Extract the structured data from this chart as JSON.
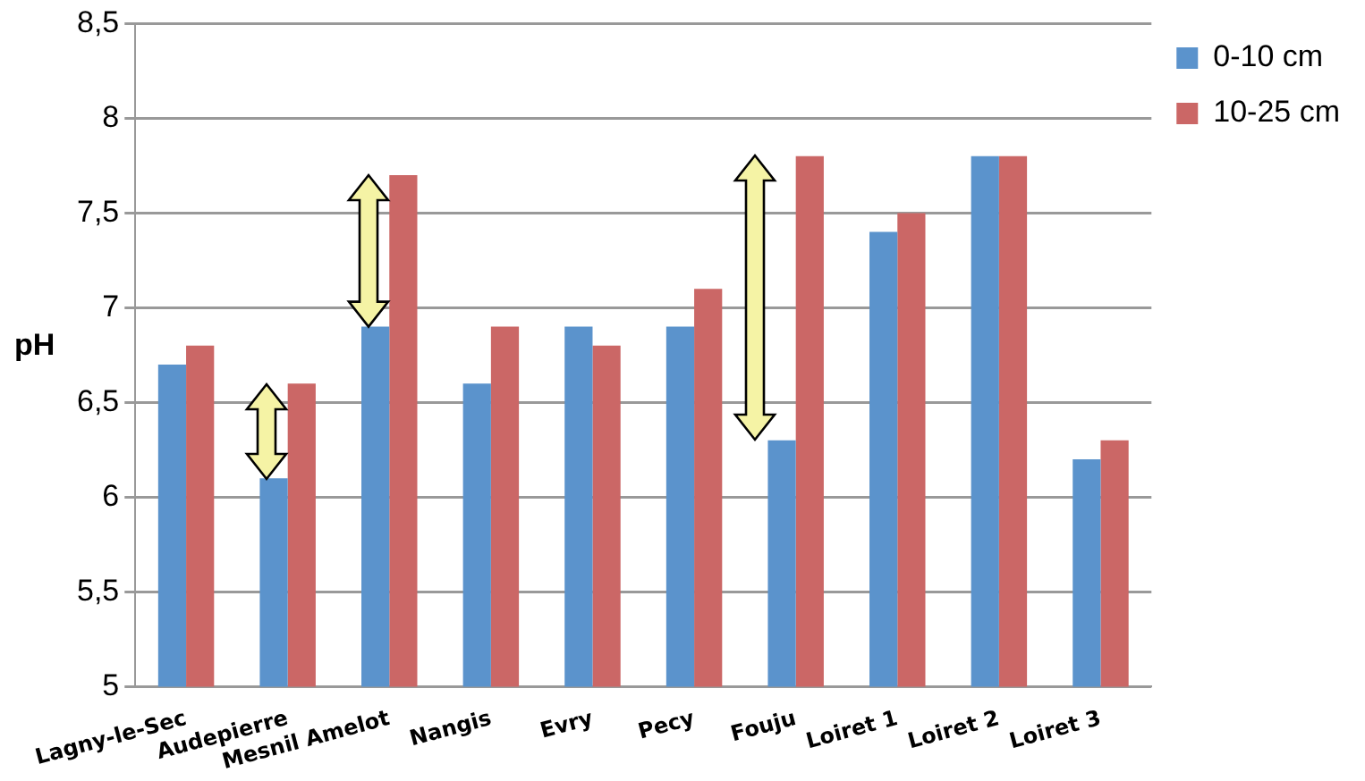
{
  "chart_data": {
    "type": "bar",
    "ylabel": "pH",
    "categories": [
      "Lagny-le-Sec",
      "Audepierre",
      "Mesnil Amelot",
      "Nangis",
      "Evry",
      "Pecy",
      "Fouju",
      "Loiret 1",
      "Loiret 2",
      "Loiret 3"
    ],
    "series": [
      {
        "name": "0-10 cm",
        "color": "#5b93cc",
        "values": [
          6.7,
          6.1,
          6.9,
          6.6,
          6.9,
          6.9,
          6.3,
          7.4,
          7.8,
          6.2
        ]
      },
      {
        "name": "10-25 cm",
        "color": "#cb6766",
        "values": [
          6.8,
          6.6,
          7.7,
          6.9,
          6.8,
          7.1,
          7.8,
          7.5,
          7.8,
          6.3
        ]
      }
    ],
    "ylim": [
      5,
      8.5
    ],
    "yticks": [
      5,
      {
        "value": 5.5,
        "label": "5,5"
      },
      6,
      {
        "value": 6.5,
        "label": "6,5"
      },
      7,
      {
        "value": 7.5,
        "label": "7,5"
      },
      8,
      {
        "value": 8.5,
        "label": "8,5"
      }
    ],
    "grid": "y",
    "legend": "right"
  }
}
